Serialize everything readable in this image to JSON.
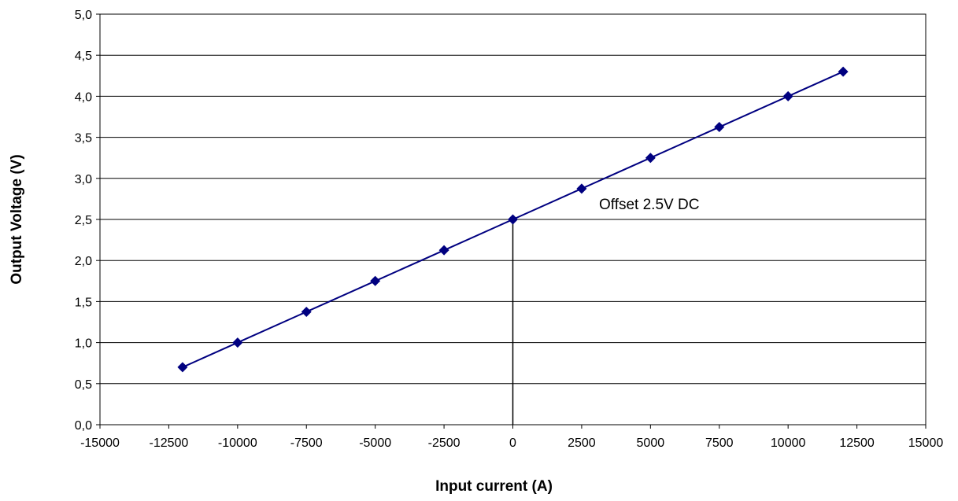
{
  "chart_data": {
    "type": "line",
    "xlabel": "Input current (A)",
    "ylabel": "Output Voltage (V)",
    "xlim": [
      -15000,
      15000
    ],
    "ylim": [
      0,
      5
    ],
    "x_ticks": [
      -15000,
      -12500,
      -10000,
      -7500,
      -5000,
      -2500,
      0,
      2500,
      5000,
      7500,
      10000,
      12500,
      15000
    ],
    "x_tick_labels": [
      "-15000",
      "-12500",
      "-10000",
      "-7500",
      "-5000",
      "-2500",
      "0",
      "2500",
      "5000",
      "7500",
      "10000",
      "12500",
      "15000"
    ],
    "y_ticks": [
      0,
      0.5,
      1,
      1.5,
      2,
      2.5,
      3,
      3.5,
      4,
      4.5,
      5
    ],
    "y_tick_labels": [
      "0,0",
      "0,5",
      "1,0",
      "1,5",
      "2,0",
      "2,5",
      "3,0",
      "3,5",
      "4,0",
      "4,5",
      "5,0"
    ],
    "grid": "horizontal",
    "series": [
      {
        "color": "#000080",
        "marker": "diamond",
        "x": [
          -12000,
          -10000,
          -7500,
          -5000,
          -2500,
          0,
          2500,
          5000,
          7500,
          10000,
          12000
        ],
        "y": [
          0.7,
          1.0,
          1.375,
          1.75,
          2.125,
          2.5,
          2.875,
          3.25,
          3.625,
          4.0,
          4.3
        ]
      }
    ],
    "annotation": {
      "text": "Offset 2.5V DC",
      "x": 0,
      "y": 2.5
    }
  }
}
